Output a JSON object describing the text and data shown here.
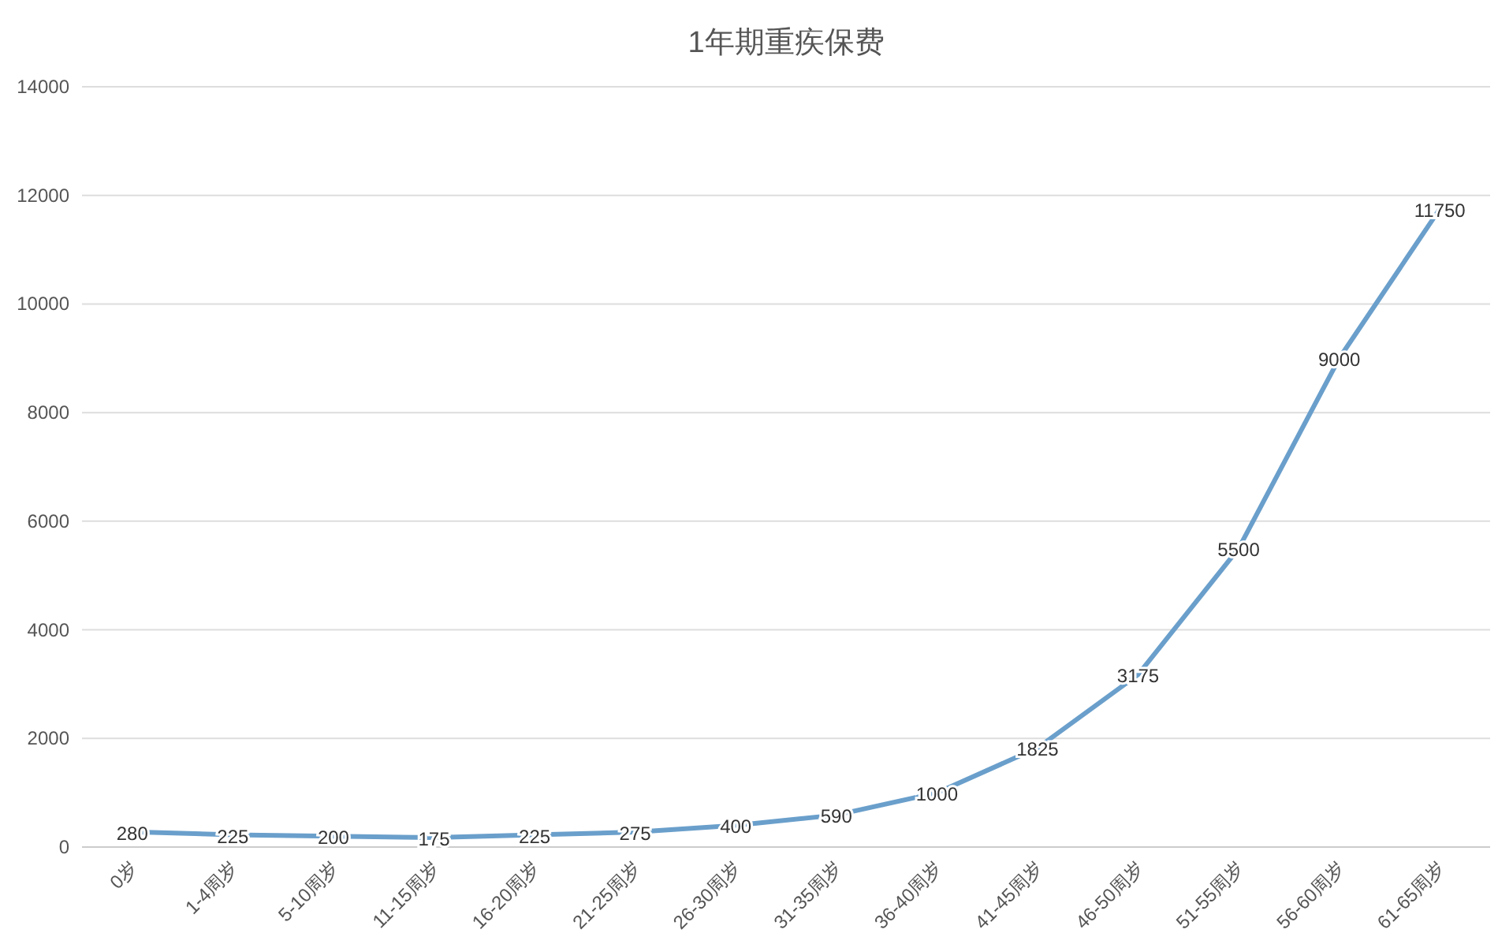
{
  "chart_data": {
    "type": "line",
    "title": "1年期重疾保费",
    "categories": [
      "0岁",
      "1-4周岁",
      "5-10周岁",
      "11-15周岁",
      "16-20周岁",
      "21-25周岁",
      "26-30周岁",
      "31-35周岁",
      "36-40周岁",
      "41-45周岁",
      "46-50周岁",
      "51-55周岁",
      "56-60周岁",
      "61-65周岁"
    ],
    "series": [
      {
        "color": "#6a9fcb",
        "values": [
          280,
          225,
          200,
          175,
          225,
          275,
          400,
          590,
          1000,
          1825,
          3175,
          5500,
          9000,
          11750
        ]
      }
    ],
    "ylim": [
      0,
      14000
    ],
    "yticks": [
      0,
      2000,
      4000,
      6000,
      8000,
      10000,
      12000,
      14000
    ],
    "grid": "y",
    "data_labels": true,
    "marker": "none",
    "line_style": "solid"
  }
}
